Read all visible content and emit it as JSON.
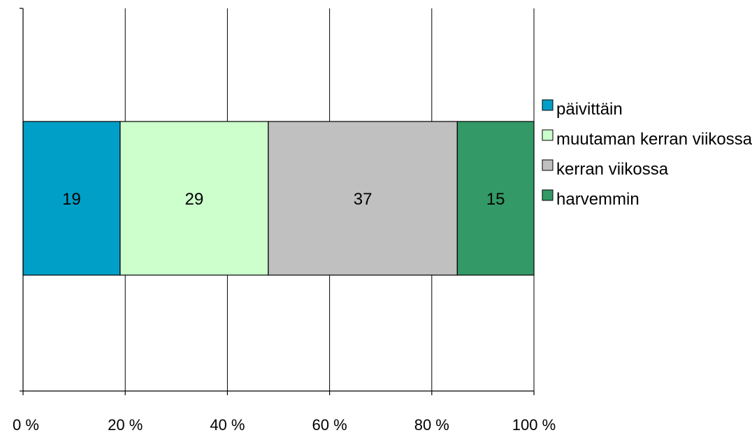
{
  "chart_data": {
    "type": "bar",
    "orientation": "horizontal",
    "stacked": "percent",
    "categories": [
      ""
    ],
    "series": [
      {
        "name": "päivittäin",
        "values": [
          19
        ],
        "color": "#009fc7"
      },
      {
        "name": "muutaman kerran viikossa",
        "values": [
          29
        ],
        "color": "#ccffcc"
      },
      {
        "name": "kerran viikossa",
        "values": [
          37
        ],
        "color": "#c0c0c0"
      },
      {
        "name": "harvemmin",
        "values": [
          15
        ],
        "color": "#339966"
      }
    ],
    "xlim": [
      0,
      100
    ],
    "x_ticks": [
      0,
      20,
      40,
      60,
      80,
      100
    ],
    "x_tick_labels": [
      "0 %",
      "20 %",
      "40 %",
      "60 %",
      "80 %",
      "100 %"
    ],
    "title": "",
    "xlabel": "",
    "ylabel": "",
    "grid": "vertical",
    "legend_position": "right",
    "data_labels": true
  }
}
